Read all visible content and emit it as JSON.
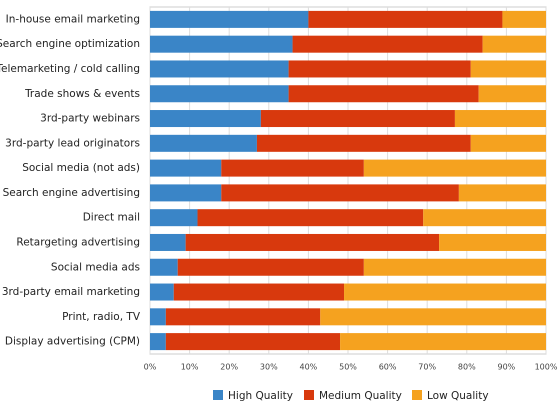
{
  "chart_data": {
    "type": "stacked-bar-horizontal",
    "categories": [
      "In-house email marketing",
      "Search engine optimization",
      "Telemarketing / cold calling",
      "Trade shows & events",
      "3rd-party webinars",
      "3rd-party lead originators",
      "Social media (not ads)",
      "Search engine advertising",
      "Direct mail",
      "Retargeting advertising",
      "Social media ads",
      "3rd-party email marketing",
      "Print, radio, TV",
      "Display advertising (CPM)"
    ],
    "series": [
      {
        "name": "High Quality",
        "color": "#3a85c7",
        "values": [
          40,
          36,
          35,
          35,
          28,
          27,
          18,
          18,
          12,
          9,
          7,
          6,
          4,
          4
        ]
      },
      {
        "name": "Medium Quality",
        "color": "#d8390d",
        "values": [
          49,
          48,
          46,
          48,
          49,
          54,
          36,
          60,
          57,
          64,
          47,
          43,
          39,
          44
        ]
      },
      {
        "name": "Low Quality",
        "color": "#f5a21f",
        "values": [
          11,
          16,
          19,
          17,
          23,
          19,
          46,
          22,
          31,
          27,
          46,
          51,
          57,
          52
        ]
      }
    ],
    "xlim": [
      0,
      100
    ],
    "xticks": [
      {
        "value": 0,
        "label": "0%"
      },
      {
        "value": 10,
        "label": "10%"
      },
      {
        "value": 20,
        "label": "20%"
      },
      {
        "value": 30,
        "label": "30%"
      },
      {
        "value": 40,
        "label": "40%"
      },
      {
        "value": 50,
        "label": "50%"
      },
      {
        "value": 60,
        "label": "60%"
      },
      {
        "value": 70,
        "label": "70%"
      },
      {
        "value": 80,
        "label": "80%"
      },
      {
        "value": 90,
        "label": "90%"
      },
      {
        "value": 100,
        "label": "100%"
      }
    ],
    "grid": true,
    "legend": "bottom"
  }
}
